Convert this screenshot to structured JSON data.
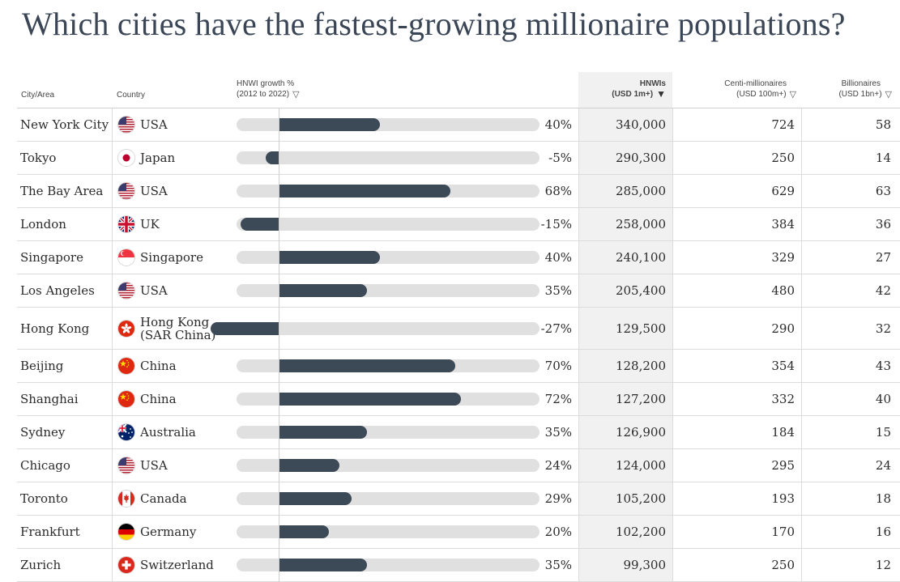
{
  "title": "Which cities have the fastest-growing millionaire populations?",
  "headers": {
    "city": "City/Area",
    "country": "Country",
    "growth_line1": "HNWI growth %",
    "growth_line2": "(2012 to 2022)",
    "hnwi_line1": "HNWIs",
    "hnwi_line2": "(USD 1m+)",
    "centi_line1": "Centi-millionaires",
    "centi_line2": "(USD 100m+)",
    "bill_line1": "Billionaires",
    "bill_line2": "(USD 1bn+)"
  },
  "icons": {
    "sort_inactive": "▽",
    "sort_active": "▼"
  },
  "colors": {
    "bar": "#3c4957",
    "track": "#e0e0e1",
    "title": "#3a4656",
    "active_column_bg": "#f1f1f1"
  },
  "chart_data": {
    "type": "table",
    "title": "Which cities have the fastest-growing millionaire populations?",
    "columns": [
      "City/Area",
      "Country",
      "HNWI growth % (2012 to 2022)",
      "HNWIs (USD 1m+)",
      "Centi-millionaires (USD 100m+)",
      "Billionaires (USD 1bn+)"
    ],
    "sorted_by": "HNWIs (USD 1m+)",
    "growth_axis_range": [
      -30,
      100
    ],
    "rows": [
      {
        "city": "New York City",
        "country": "USA",
        "flag": "usa",
        "growth": 40,
        "growth_label": "40%",
        "hnwi": "340,000",
        "centi": "724",
        "bill": "58"
      },
      {
        "city": "Tokyo",
        "country": "Japan",
        "flag": "japan",
        "growth": -5,
        "growth_label": "-5%",
        "hnwi": "290,300",
        "centi": "250",
        "bill": "14"
      },
      {
        "city": "The Bay Area",
        "country": "USA",
        "flag": "usa",
        "growth": 68,
        "growth_label": "68%",
        "hnwi": "285,000",
        "centi": "629",
        "bill": "63"
      },
      {
        "city": "London",
        "country": "UK",
        "flag": "uk",
        "growth": -15,
        "growth_label": "-15%",
        "hnwi": "258,000",
        "centi": "384",
        "bill": "36"
      },
      {
        "city": "Singapore",
        "country": "Singapore",
        "flag": "singapore",
        "growth": 40,
        "growth_label": "40%",
        "hnwi": "240,100",
        "centi": "329",
        "bill": "27"
      },
      {
        "city": "Los Angeles",
        "country": "USA",
        "flag": "usa",
        "growth": 35,
        "growth_label": "35%",
        "hnwi": "205,400",
        "centi": "480",
        "bill": "42"
      },
      {
        "city": "Hong Kong",
        "country": "Hong Kong (SAR China)",
        "country_line1": "Hong Kong",
        "country_line2": "(SAR China)",
        "flag": "hongkong",
        "growth": -27,
        "growth_label": "-27%",
        "hnwi": "129,500",
        "centi": "290",
        "bill": "32"
      },
      {
        "city": "Beijing",
        "country": "China",
        "flag": "china",
        "growth": 70,
        "growth_label": "70%",
        "hnwi": "128,200",
        "centi": "354",
        "bill": "43"
      },
      {
        "city": "Shanghai",
        "country": "China",
        "flag": "china",
        "growth": 72,
        "growth_label": "72%",
        "hnwi": "127,200",
        "centi": "332",
        "bill": "40"
      },
      {
        "city": "Sydney",
        "country": "Australia",
        "flag": "australia",
        "growth": 35,
        "growth_label": "35%",
        "hnwi": "126,900",
        "centi": "184",
        "bill": "15"
      },
      {
        "city": "Chicago",
        "country": "USA",
        "flag": "usa",
        "growth": 24,
        "growth_label": "24%",
        "hnwi": "124,000",
        "centi": "295",
        "bill": "24"
      },
      {
        "city": "Toronto",
        "country": "Canada",
        "flag": "canada",
        "growth": 29,
        "growth_label": "29%",
        "hnwi": "105,200",
        "centi": "193",
        "bill": "18"
      },
      {
        "city": "Frankfurt",
        "country": "Germany",
        "flag": "germany",
        "growth": 20,
        "growth_label": "20%",
        "hnwi": "102,200",
        "centi": "170",
        "bill": "16"
      },
      {
        "city": "Zurich",
        "country": "Switzerland",
        "flag": "switzerland",
        "growth": 35,
        "growth_label": "35%",
        "hnwi": "99,300",
        "centi": "250",
        "bill": "12"
      }
    ]
  }
}
